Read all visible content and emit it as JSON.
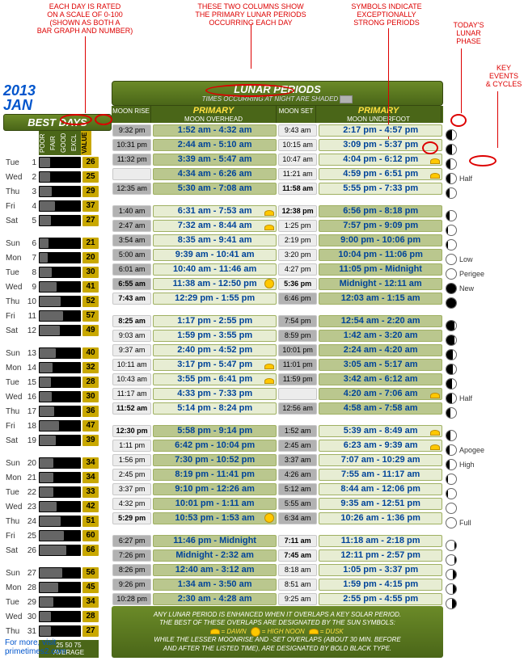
{
  "meta": {
    "year": "2013",
    "month": "JAN",
    "footer": "For more, visit",
    "footer2": "primetimes2.com"
  },
  "callouts": {
    "c1": "EACH DAY IS RATED\nON A SCALE OF 0-100\n(SHOWN AS BOTH A\nBAR GRAPH AND NUMBER)",
    "c2": "THESE TWO COLUMNS SHOW\nTHE PRIMARY LUNAR PERIODS\nOCCURRING EACH DAY",
    "c3": "SYMBOLS INDICATE\nEXCEPTIONALLY\nSTRONG PERIODS",
    "c4": "TODAY'S\nLUNAR\nPHASE",
    "c5": "KEY\nEVENTS\n& CYCLES"
  },
  "bestdays": {
    "title": "BEST DAYS",
    "cats": [
      "POOR",
      "FAIR",
      "GOOD",
      "EXCL"
    ],
    "val": "VALUE",
    "avg": "25 50 75",
    "avglabel": "AVERAGE"
  },
  "lunar": {
    "title": "LUNAR PERIODS",
    "sub": "TIMES OCCURRING AT NIGHT ARE SHADED",
    "mr": "MOON RISE",
    "oh": "MOON OVERHEAD",
    "ms": "MOON SET",
    "uf": "MOON UNDERFOOT",
    "pr": "PRIMARY"
  },
  "note": {
    "l1": "ANY LUNAR PERIOD IS ENHANCED WHEN IT OVERLAPS A KEY SOLAR PERIOD.",
    "l2": "THE BEST OF THESE OVERLAPS ARE DESIGNATED BY THE SUN SYMBOLS:",
    "l3a": "= DAWN",
    "l3b": "= HIGH NOON",
    "l3c": "= DUSK",
    "l4": "WHILE THE LESSER MOONRISE AND -SET OVERLAPS (ABOUT 30 MIN. BEFORE",
    "l5": "AND AFTER THE LISTED TIME), ARE DESIGNATED BY BOLD BLACK TYPE."
  },
  "colors": {
    "header": "#5a7a1e",
    "accent": "#c9a800",
    "primtext": "#004499",
    "callout": "#d00"
  },
  "weeks": [
    [
      {
        "dow": "Tue",
        "d": 1,
        "val": 26,
        "mr": "9:32 pm",
        "mrn": 1,
        "oh": "1:52 am - 4:32 am",
        "ohn": 1,
        "ms": "9:43 am",
        "msn": 0,
        "uf": "2:17 pm - 4:57 pm",
        "ufn": 0,
        "ph": 3,
        "evt": ""
      },
      {
        "dow": "Wed",
        "d": 2,
        "val": 25,
        "mr": "10:31 pm",
        "mrn": 1,
        "oh": "2:44 am - 5:10 am",
        "ohn": 1,
        "ms": "10:15 am",
        "msn": 0,
        "uf": "3:09 pm - 5:37 pm",
        "ufn": 0,
        "ph": 3,
        "evt": ""
      },
      {
        "dow": "Thu",
        "d": 3,
        "val": 29,
        "mr": "11:32 pm",
        "mrn": 1,
        "oh": "3:39 am - 5:47 am",
        "ohn": 1,
        "ms": "10:47 am",
        "msn": 0,
        "uf": "4:04 pm - 6:12 pm",
        "ufn": 0,
        "ufsun": 1,
        "ph": 4,
        "evt": ""
      },
      {
        "dow": "Fri",
        "d": 4,
        "val": 37,
        "mr": "",
        "mrn": 0,
        "oh": "4:34 am - 6:26 am",
        "ohn": 1,
        "ms": "11:21 am",
        "msn": 0,
        "uf": "4:59 pm - 6:51 pm",
        "ufn": 0,
        "ufsun": 1,
        "ph": 4,
        "evt": "Half"
      },
      {
        "dow": "Sat",
        "d": 5,
        "val": 27,
        "mr": "12:35 am",
        "mrn": 1,
        "oh": "5:30 am - 7:08 am",
        "ohn": 1,
        "ms": "11:58 am",
        "msn": 0,
        "msb": 1,
        "uf": "5:55 pm - 7:33 pm",
        "ufn": 0,
        "ph": 5,
        "evt": ""
      }
    ],
    [
      {
        "dow": "Sun",
        "d": 6,
        "val": 21,
        "mr": "1:40 am",
        "mrn": 1,
        "oh": "6:31 am - 7:53 am",
        "ohn": 0,
        "ohsun": 1,
        "ms": "12:38 pm",
        "msn": 0,
        "msb": 1,
        "uf": "6:56 pm - 8:18 pm",
        "ufn": 1,
        "ph": 5,
        "evt": ""
      },
      {
        "dow": "Mon",
        "d": 7,
        "val": 20,
        "mr": "2:47 am",
        "mrn": 1,
        "oh": "7:32 am - 8:44 am",
        "ohn": 0,
        "ohsun": 1,
        "ms": "1:25 pm",
        "msn": 0,
        "uf": "7:57 pm - 9:09 pm",
        "ufn": 1,
        "ph": 6,
        "evt": ""
      },
      {
        "dow": "Tue",
        "d": 8,
        "val": 30,
        "mr": "3:54 am",
        "mrn": 1,
        "oh": "8:35 am - 9:41 am",
        "ohn": 0,
        "ms": "2:19 pm",
        "msn": 0,
        "uf": "9:00 pm - 10:06 pm",
        "ufn": 1,
        "ph": 6,
        "evt": ""
      },
      {
        "dow": "Wed",
        "d": 9,
        "val": 41,
        "mr": "5:00 am",
        "mrn": 1,
        "oh": "9:39 am - 10:41 am",
        "ohn": 0,
        "ms": "3:20 pm",
        "msn": 0,
        "uf": "10:04 pm - 11:06 pm",
        "ufn": 1,
        "ph": 7,
        "evt": "Low"
      },
      {
        "dow": "Thu",
        "d": 10,
        "val": 52,
        "mr": "6:01 am",
        "mrn": 1,
        "oh": "10:40 am - 11:46 am",
        "ohn": 0,
        "ms": "4:27 pm",
        "msn": 0,
        "uf": "11:05 pm - Midnight",
        "ufn": 1,
        "ph": 7,
        "evt": "Perigee"
      },
      {
        "dow": "Fri",
        "d": 11,
        "val": 57,
        "mr": "6:55 am",
        "mrn": 1,
        "mrb": 1,
        "oh": "11:38 am - 12:50 pm",
        "ohn": 0,
        "ohsun": 2,
        "ms": "5:36 pm",
        "msn": 0,
        "msb": 1,
        "uf": "Midnight - 12:11 am",
        "ufn": 1,
        "ph": 0,
        "evt": "New"
      },
      {
        "dow": "Sat",
        "d": 12,
        "val": 49,
        "mr": "7:43 am",
        "mrn": 0,
        "mrb": 1,
        "oh": "12:29 pm - 1:55 pm",
        "ohn": 0,
        "ms": "6:46 pm",
        "msn": 1,
        "uf": "12:03 am - 1:15 am",
        "ufn": 1,
        "ph": 0,
        "evt": ""
      }
    ],
    [
      {
        "dow": "Sun",
        "d": 13,
        "val": 40,
        "mr": "8:25 am",
        "mrn": 0,
        "mrb": 1,
        "oh": "1:17 pm - 2:55 pm",
        "ohn": 0,
        "ms": "7:54 pm",
        "msn": 1,
        "uf": "12:54 am - 2:20 am",
        "ufn": 1,
        "ph": 1,
        "evt": ""
      },
      {
        "dow": "Mon",
        "d": 14,
        "val": 32,
        "mr": "9:03 am",
        "mrn": 0,
        "oh": "1:59 pm - 3:55 pm",
        "ohn": 0,
        "ms": "8:59 pm",
        "msn": 1,
        "uf": "1:42 am - 3:20 am",
        "ufn": 1,
        "ph": 1,
        "evt": ""
      },
      {
        "dow": "Tue",
        "d": 15,
        "val": 28,
        "mr": "9:37 am",
        "mrn": 0,
        "oh": "2:40 pm - 4:52 pm",
        "ohn": 0,
        "ms": "10:01 pm",
        "msn": 1,
        "uf": "2:24 am - 4:20 am",
        "ufn": 1,
        "ph": 2,
        "evt": ""
      },
      {
        "dow": "Wed",
        "d": 16,
        "val": 30,
        "mr": "10:11 am",
        "mrn": 0,
        "oh": "3:17 pm - 5:47 pm",
        "ohn": 0,
        "ohsun": 1,
        "ms": "11:01 pm",
        "msn": 1,
        "uf": "3:05 am - 5:17 am",
        "ufn": 1,
        "ph": 2,
        "evt": ""
      },
      {
        "dow": "Thu",
        "d": 17,
        "val": 36,
        "mr": "10:43 am",
        "mrn": 0,
        "oh": "3:55 pm - 6:41 pm",
        "ohn": 0,
        "ohsun": 1,
        "ms": "11:59 pm",
        "msn": 1,
        "uf": "3:42 am - 6:12 am",
        "ufn": 1,
        "ph": 3,
        "evt": ""
      },
      {
        "dow": "Fri",
        "d": 18,
        "val": 47,
        "mr": "11:17 am",
        "mrn": 0,
        "oh": "4:33 pm - 7:33 pm",
        "ohn": 0,
        "ms": "",
        "msn": 0,
        "uf": "4:20 am - 7:06 am",
        "ufn": 1,
        "ufsun": 1,
        "ph": 3,
        "evt": "Half"
      },
      {
        "dow": "Sat",
        "d": 19,
        "val": 39,
        "mr": "11:52 am",
        "mrn": 0,
        "mrb": 1,
        "oh": "5:14 pm - 8:24 pm",
        "ohn": 0,
        "ms": "12:56 am",
        "msn": 1,
        "uf": "4:58 am - 7:58 am",
        "ufn": 1,
        "ph": 4,
        "evt": ""
      }
    ],
    [
      {
        "dow": "Sun",
        "d": 20,
        "val": 34,
        "mr": "12:30 pm",
        "mrn": 0,
        "mrb": 1,
        "oh": "5:58 pm - 9:14 pm",
        "ohn": 1,
        "ms": "1:52 am",
        "msn": 1,
        "uf": "5:39 am - 8:49 am",
        "ufn": 0,
        "ufsun": 1,
        "ph": 4,
        "evt": ""
      },
      {
        "dow": "Mon",
        "d": 21,
        "val": 34,
        "mr": "1:11 pm",
        "mrn": 0,
        "oh": "6:42 pm - 10:04 pm",
        "ohn": 1,
        "ms": "2:45 am",
        "msn": 1,
        "uf": "6:23 am - 9:39 am",
        "ufn": 0,
        "ufsun": 1,
        "ph": 5,
        "evt": "Apogee"
      },
      {
        "dow": "Tue",
        "d": 22,
        "val": 33,
        "mr": "1:56 pm",
        "mrn": 0,
        "oh": "7:30 pm - 10:52 pm",
        "ohn": 1,
        "ms": "3:37 am",
        "msn": 1,
        "uf": "7:07 am - 10:29 am",
        "ufn": 0,
        "ph": 5,
        "evt": "High"
      },
      {
        "dow": "Wed",
        "d": 23,
        "val": 42,
        "mr": "2:45 pm",
        "mrn": 0,
        "oh": "8:19 pm - 11:41 pm",
        "ohn": 1,
        "ms": "4:26 am",
        "msn": 1,
        "uf": "7:55 am - 11:17 am",
        "ufn": 0,
        "ph": 6,
        "evt": ""
      },
      {
        "dow": "Thu",
        "d": 24,
        "val": 51,
        "mr": "3:37 pm",
        "mrn": 0,
        "oh": "9:10 pm - 12:26 am",
        "ohn": 1,
        "ms": "5:12 am",
        "msn": 1,
        "uf": "8:44 am - 12:06 pm",
        "ufn": 0,
        "ph": 6,
        "evt": ""
      },
      {
        "dow": "Fri",
        "d": 25,
        "val": 60,
        "mr": "4:32 pm",
        "mrn": 0,
        "oh": "10:01 pm - 1:11 am",
        "ohn": 1,
        "ms": "5:55 am",
        "msn": 1,
        "uf": "9:35 am - 12:51 pm",
        "ufn": 0,
        "ph": 7,
        "evt": ""
      },
      {
        "dow": "Sat",
        "d": 26,
        "val": 66,
        "mr": "5:29 pm",
        "mrn": 0,
        "mrb": 1,
        "oh": "10:53 pm - 1:53 am",
        "ohn": 1,
        "ms": "6:34 am",
        "msn": 1,
        "uf": "10:26 am - 1:36 pm",
        "ufn": 0,
        "ohsun": 2,
        "ph": 7,
        "evt": "Full"
      }
    ],
    [
      {
        "dow": "Sun",
        "d": 27,
        "val": 56,
        "mr": "6:27 pm",
        "mrn": 1,
        "oh": "11:46 pm - Midnight",
        "ohn": 1,
        "ms": "7:11 am",
        "msn": 0,
        "msb": 1,
        "uf": "11:18 am - 2:18 pm",
        "ufn": 0,
        "ph": 8,
        "evt": ""
      },
      {
        "dow": "Mon",
        "d": 28,
        "val": 45,
        "mr": "7:26 pm",
        "mrn": 1,
        "oh": "Midnight - 2:32 am",
        "ohn": 1,
        "ms": "7:45 am",
        "msn": 0,
        "msb": 1,
        "uf": "12:11 pm - 2:57 pm",
        "ufn": 0,
        "ph": 8,
        "evt": ""
      },
      {
        "dow": "Tue",
        "d": 29,
        "val": 34,
        "mr": "8:26 pm",
        "mrn": 1,
        "oh": "12:40 am - 3:12 am",
        "ohn": 1,
        "ms": "8:18 am",
        "msn": 0,
        "uf": "1:05 pm - 3:37 pm",
        "ufn": 0,
        "ph": 9,
        "evt": ""
      },
      {
        "dow": "Wed",
        "d": 30,
        "val": 28,
        "mr": "9:26 pm",
        "mrn": 1,
        "oh": "1:34 am - 3:50 am",
        "ohn": 1,
        "ms": "8:51 am",
        "msn": 0,
        "uf": "1:59 pm - 4:15 pm",
        "ufn": 0,
        "ph": 9,
        "evt": ""
      },
      {
        "dow": "Thu",
        "d": 31,
        "val": 27,
        "mr": "10:28 pm",
        "mrn": 1,
        "oh": "2:30 am - 4:28 am",
        "ohn": 1,
        "ms": "9:25 am",
        "msn": 0,
        "uf": "2:55 pm - 4:55 pm",
        "ufn": 0,
        "ph": 10,
        "evt": ""
      }
    ]
  ]
}
